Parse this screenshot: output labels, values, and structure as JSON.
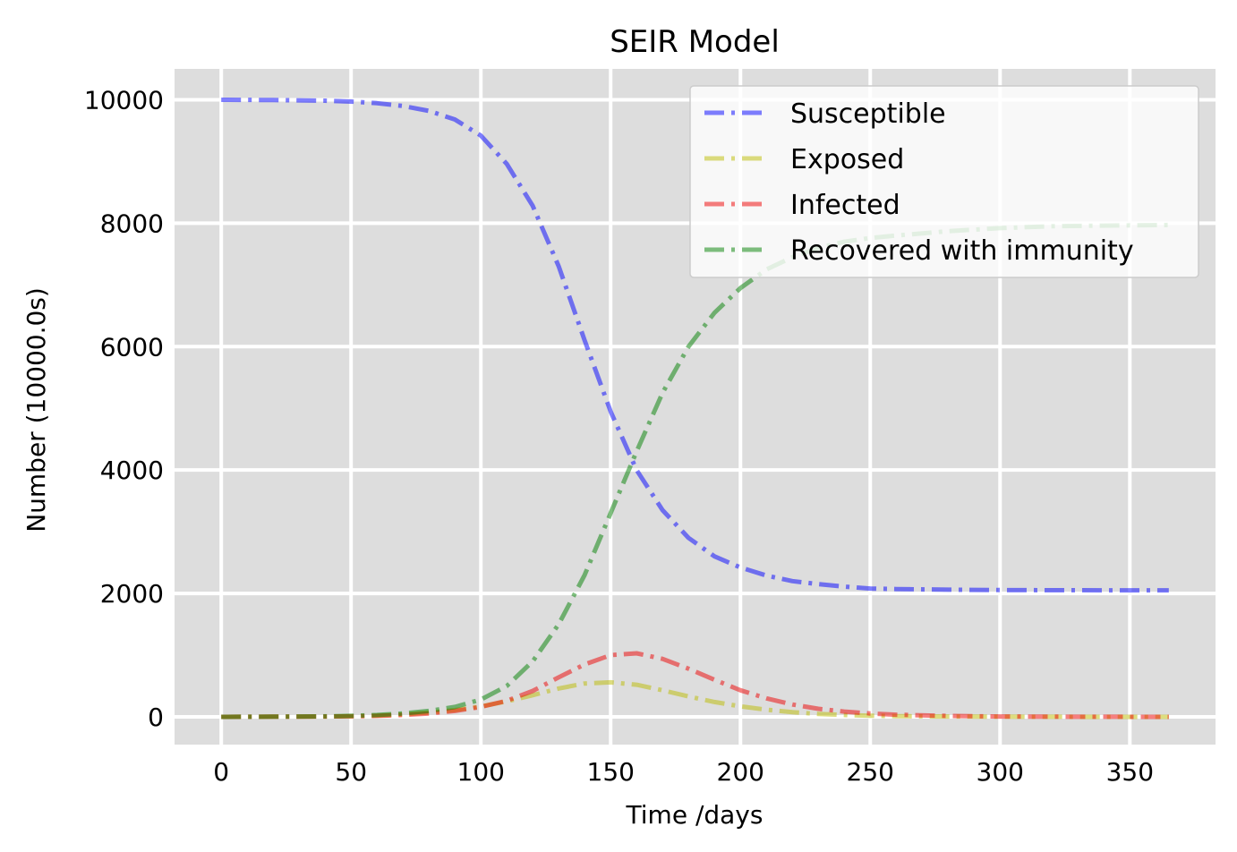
{
  "chart_data": {
    "type": "line",
    "title": "SEIR Model",
    "xlabel": "Time /days",
    "ylabel": "Number (10000.0s)",
    "xlim": [
      -18,
      383
    ],
    "ylim": [
      -450,
      10500
    ],
    "x_ticks": [
      0,
      50,
      100,
      150,
      200,
      250,
      300,
      350
    ],
    "y_ticks": [
      0,
      2000,
      4000,
      6000,
      8000,
      10000
    ],
    "grid": true,
    "legend_position": "top-right",
    "background": "#dddddd",
    "series": [
      {
        "name": "Susceptible",
        "color": "#0000ff",
        "x": [
          0,
          20,
          40,
          50,
          60,
          70,
          80,
          90,
          100,
          110,
          120,
          130,
          140,
          150,
          160,
          170,
          180,
          190,
          200,
          210,
          220,
          230,
          240,
          250,
          260,
          280,
          300,
          320,
          340,
          365
        ],
        "y": [
          10000,
          9995,
          9985,
          9970,
          9945,
          9900,
          9820,
          9680,
          9420,
          8960,
          8280,
          7300,
          6100,
          4950,
          4000,
          3350,
          2900,
          2600,
          2420,
          2290,
          2200,
          2150,
          2110,
          2080,
          2070,
          2060,
          2055,
          2052,
          2050,
          2050
        ]
      },
      {
        "name": "Exposed",
        "color": "#bbbb00",
        "x": [
          0,
          20,
          40,
          50,
          60,
          70,
          80,
          90,
          100,
          110,
          120,
          130,
          140,
          150,
          160,
          170,
          180,
          190,
          200,
          210,
          220,
          230,
          240,
          250,
          260,
          280,
          300,
          320,
          340,
          365
        ],
        "y": [
          0,
          3,
          6,
          10,
          20,
          40,
          70,
          110,
          170,
          250,
          350,
          460,
          540,
          560,
          520,
          430,
          330,
          240,
          170,
          115,
          75,
          48,
          30,
          18,
          11,
          5,
          2,
          1,
          0,
          0
        ]
      },
      {
        "name": "Infected",
        "color": "#ee0000",
        "x": [
          0,
          20,
          40,
          50,
          60,
          70,
          80,
          90,
          100,
          110,
          120,
          130,
          140,
          150,
          160,
          170,
          180,
          190,
          200,
          210,
          220,
          230,
          240,
          250,
          260,
          280,
          300,
          320,
          340,
          365
        ],
        "y": [
          0,
          2,
          5,
          8,
          15,
          30,
          55,
          95,
          160,
          260,
          420,
          640,
          850,
          1000,
          1030,
          940,
          780,
          600,
          430,
          300,
          200,
          130,
          85,
          55,
          35,
          15,
          6,
          3,
          1,
          0
        ]
      },
      {
        "name": "Recovered with immunity",
        "color": "#008000",
        "x": [
          0,
          20,
          40,
          50,
          60,
          70,
          80,
          90,
          100,
          110,
          120,
          130,
          140,
          150,
          160,
          170,
          180,
          190,
          200,
          210,
          220,
          230,
          240,
          250,
          260,
          280,
          300,
          320,
          340,
          365
        ],
        "y": [
          0,
          3,
          8,
          15,
          30,
          55,
          95,
          160,
          280,
          500,
          900,
          1500,
          2300,
          3300,
          4300,
          5250,
          6000,
          6550,
          6950,
          7250,
          7450,
          7600,
          7700,
          7760,
          7800,
          7870,
          7920,
          7950,
          7960,
          7970
        ]
      }
    ]
  }
}
